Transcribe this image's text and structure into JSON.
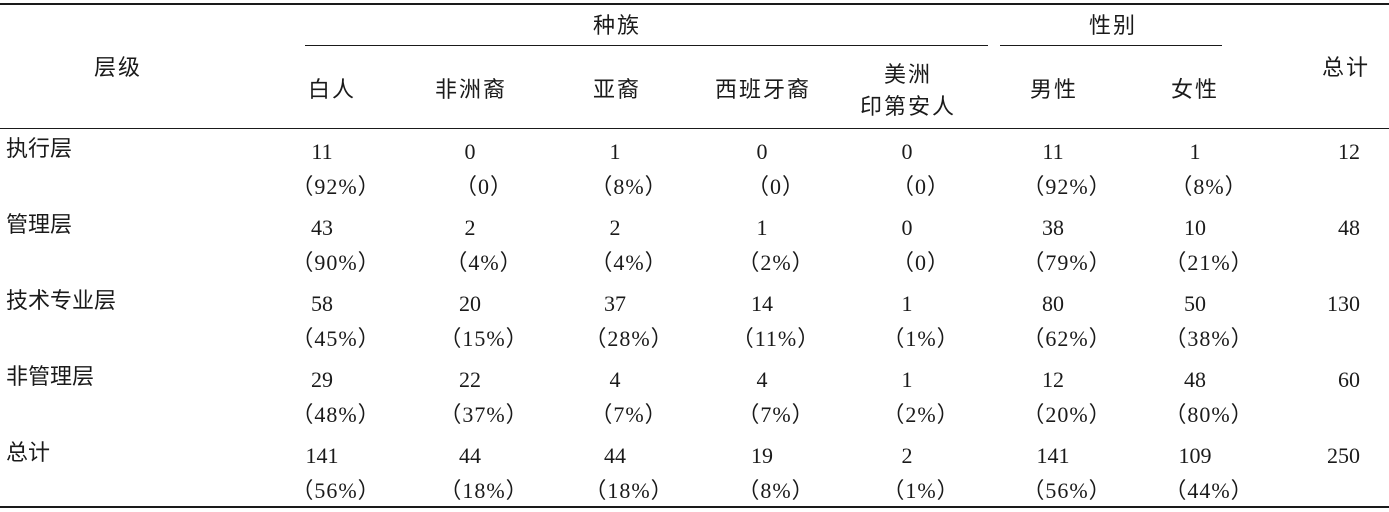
{
  "header": {
    "level": "层级",
    "race": "种族",
    "gender": "性别",
    "total": "总计",
    "cols": [
      "白人",
      "非洲裔",
      "亚裔",
      "西班牙裔",
      "美洲",
      "印第安人",
      "男性",
      "女性"
    ]
  },
  "rows": [
    {
      "label": "执行层",
      "counts": [
        "11",
        "0",
        "1",
        "0",
        "0",
        "11",
        "1"
      ],
      "pcts": [
        "（92%）",
        "（0）",
        "（8%）",
        "（0）",
        "（0）",
        "（92%）",
        "（8%）"
      ],
      "total": "12"
    },
    {
      "label": "管理层",
      "counts": [
        "43",
        "2",
        "2",
        "1",
        "0",
        "38",
        "10"
      ],
      "pcts": [
        "（90%）",
        "（4%）",
        "（4%）",
        "（2%）",
        "（0）",
        "（79%）",
        "（21%）"
      ],
      "total": "48"
    },
    {
      "label": "技术专业层",
      "counts": [
        "58",
        "20",
        "37",
        "14",
        "1",
        "80",
        "50"
      ],
      "pcts": [
        "（45%）",
        "（15%）",
        "（28%）",
        "（11%）",
        "（1%）",
        "（62%）",
        "（38%）"
      ],
      "total": "130"
    },
    {
      "label": "非管理层",
      "counts": [
        "29",
        "22",
        "4",
        "4",
        "1",
        "12",
        "48"
      ],
      "pcts": [
        "（48%）",
        "（37%）",
        "（7%）",
        "（7%）",
        "（2%）",
        "（20%）",
        "（80%）"
      ],
      "total": "60"
    },
    {
      "label": "总计",
      "counts": [
        "141",
        "44",
        "44",
        "19",
        "2",
        "141",
        "109"
      ],
      "pcts": [
        "（56%）",
        "（18%）",
        "（18%）",
        "（8%）",
        "（1%）",
        "（56%）",
        "（44%）"
      ],
      "total": "250"
    }
  ]
}
